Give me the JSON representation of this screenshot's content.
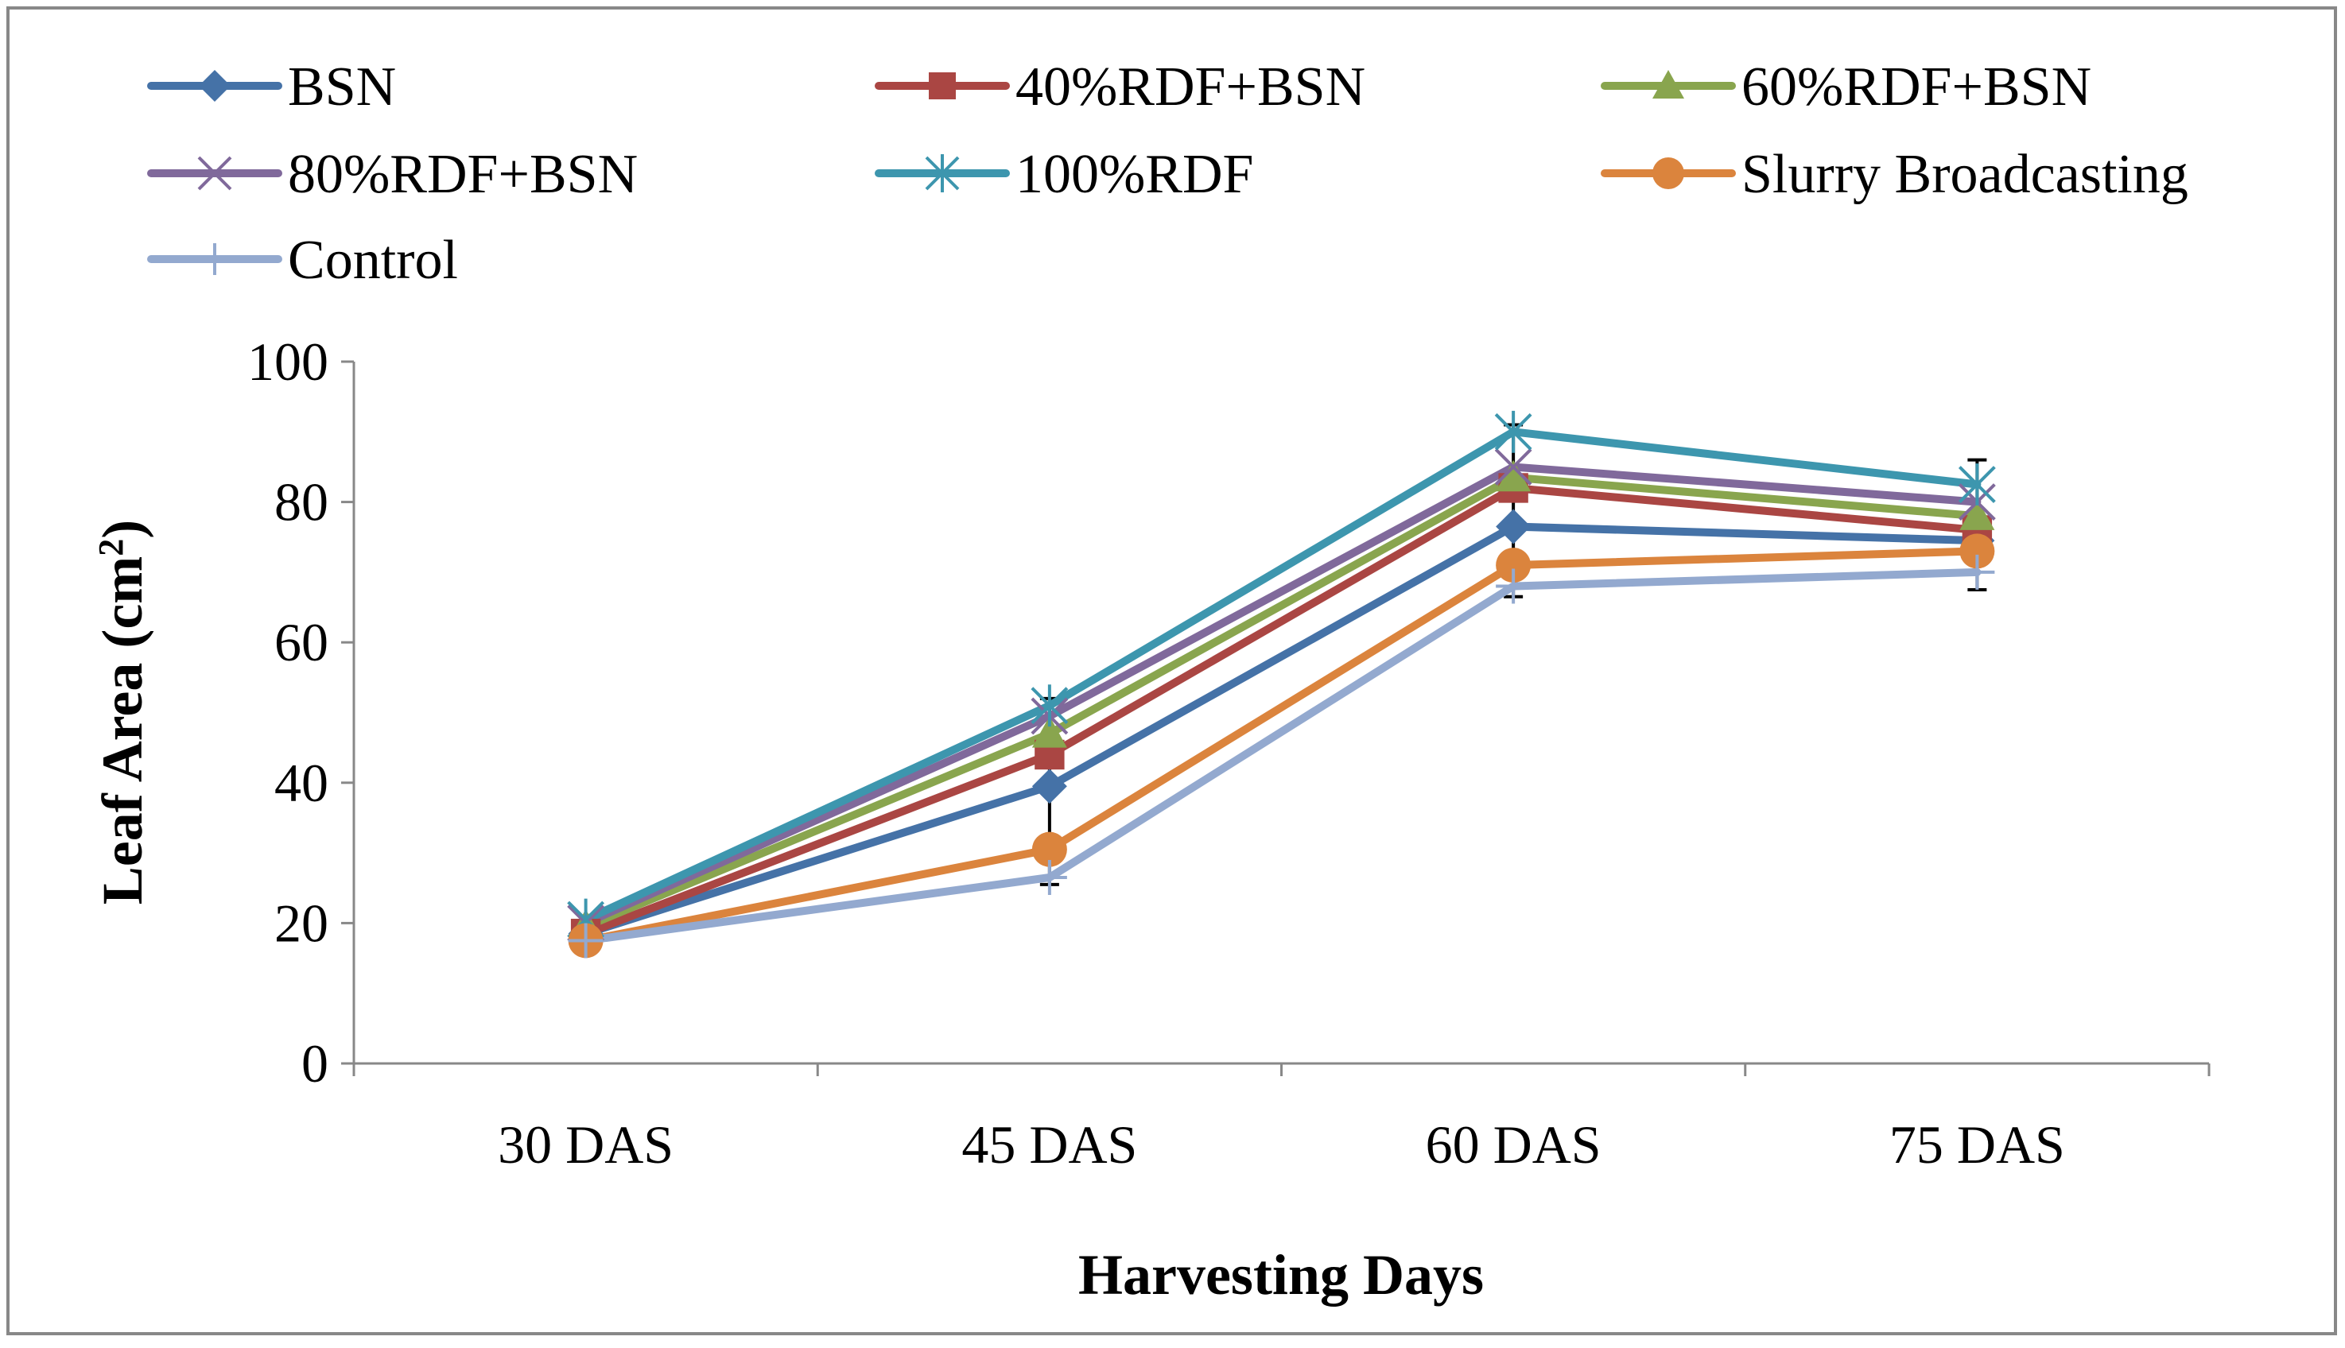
{
  "chart_data": {
    "type": "line",
    "title": "",
    "xlabel": "Harvesting Days",
    "ylabel": "Leaf Area (cm²)",
    "ylabel_main": "Leaf Area (cm",
    "ylabel_sup": "2",
    "ylabel_close": ")",
    "ylim": [
      0,
      100
    ],
    "yticks": [
      0,
      20,
      40,
      60,
      80,
      100
    ],
    "ytick_labels": [
      "0",
      "20",
      "40",
      "60",
      "80",
      "100"
    ],
    "categories": [
      "30 DAS",
      "45 DAS",
      "60 DAS",
      "75 DAS"
    ],
    "grid": false,
    "legend_position": "top",
    "series": [
      {
        "name": "BSN",
        "color": "#4572a7",
        "marker": "diamond",
        "values": [
          18.5,
          39.5,
          76.5,
          74.5
        ]
      },
      {
        "name": "40%RDF+BSN",
        "color": "#aa4643",
        "marker": "square",
        "values": [
          18.5,
          44,
          82,
          76
        ]
      },
      {
        "name": "60%RDF+BSN",
        "color": "#89a54e",
        "marker": "triangle",
        "values": [
          19.5,
          47,
          83.5,
          78
        ]
      },
      {
        "name": "80%RDF+BSN",
        "color": "#80699b",
        "marker": "x",
        "values": [
          20,
          49.5,
          85,
          80
        ]
      },
      {
        "name": "100%RDF",
        "color": "#3d96ae",
        "marker": "star",
        "values": [
          20.5,
          51,
          90,
          82.5
        ]
      },
      {
        "name": "Slurry Broadcasting",
        "color": "#db843d",
        "marker": "circle",
        "values": [
          17.5,
          30.5,
          71,
          73
        ]
      },
      {
        "name": "Control",
        "color": "#93a9cf",
        "marker": "plus",
        "values": [
          17.5,
          26.5,
          68,
          70
        ]
      }
    ],
    "error_bars": {
      "color": "#000000",
      "points": [
        {
          "category": "45 DAS",
          "low": 25.5,
          "high": 52
        },
        {
          "category": "60 DAS",
          "low": 66.5,
          "high": 91
        },
        {
          "category": "75 DAS",
          "low": 67.5,
          "high": 86
        }
      ]
    }
  }
}
